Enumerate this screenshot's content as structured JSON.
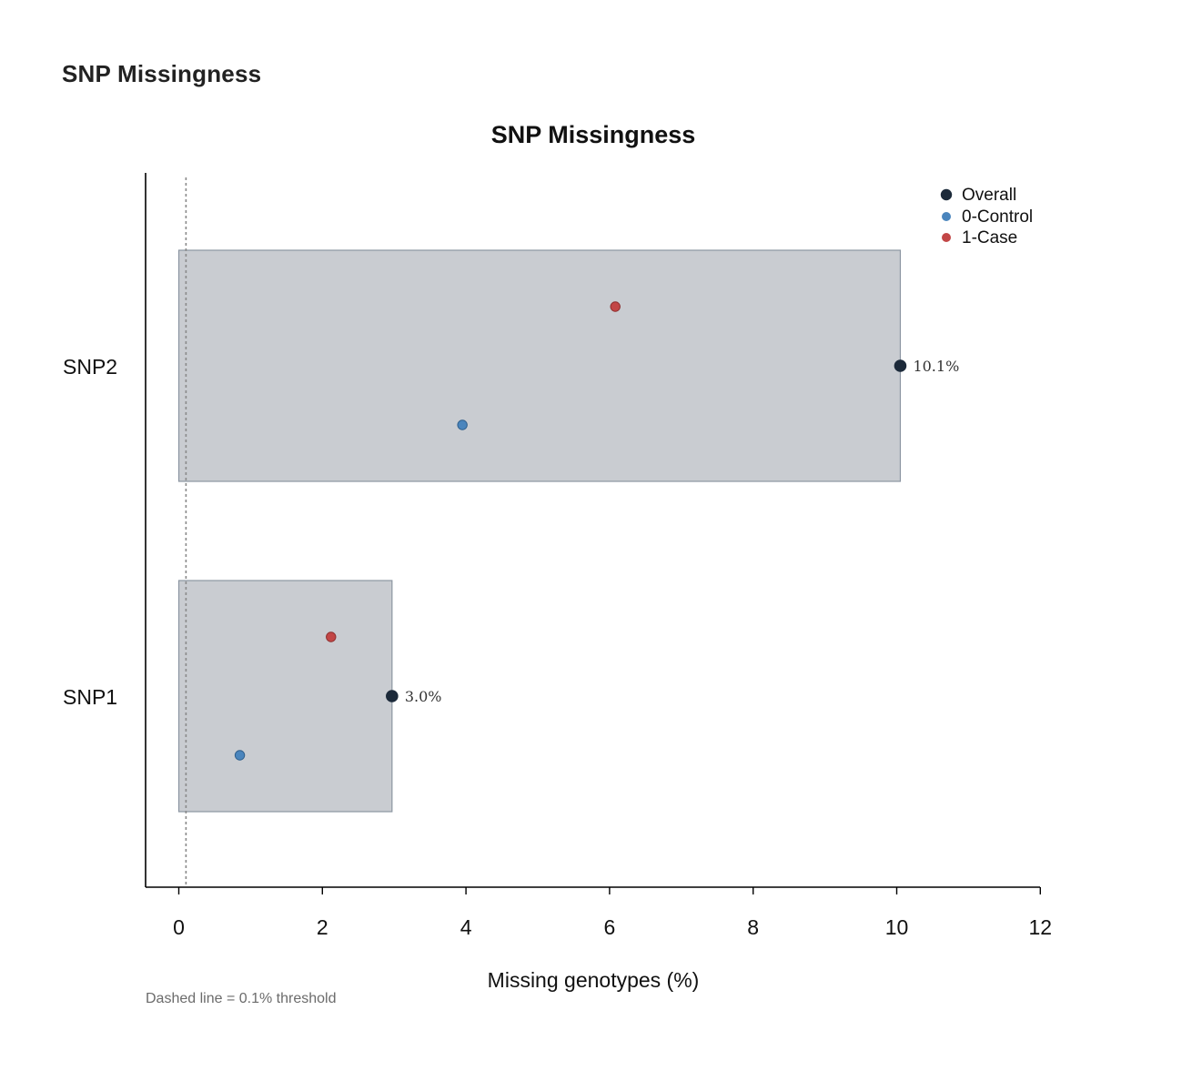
{
  "page": {
    "heading": "SNP Missingness"
  },
  "chart_data": {
    "type": "bar",
    "orientation": "horizontal",
    "title": "SNP Missingness",
    "xlabel": "Missing genotypes (%)",
    "ylabel": "",
    "xlim": [
      -0.5,
      12
    ],
    "x_ticks": [
      0,
      2,
      4,
      6,
      8,
      10,
      12
    ],
    "categories": [
      "SNP2",
      "SNP1"
    ],
    "series": [
      {
        "name": "Overall",
        "values": [
          10.05,
          2.97
        ],
        "value_labels": [
          "10.1%",
          "3.0%"
        ],
        "color": "#1c2a3a"
      },
      {
        "name": "0-Control",
        "values": [
          3.95,
          0.85
        ],
        "color": "#4a85bd"
      },
      {
        "name": "1-Case",
        "values": [
          6.08,
          2.12
        ],
        "color": "#c24646"
      }
    ],
    "bar_color": "#c9ccd1",
    "bar_edge_color": "#8c96a2",
    "threshold": {
      "value": 0.1
    },
    "legend": {
      "position": "top-right",
      "entries": [
        "Overall",
        "0-Control",
        "1-Case"
      ]
    },
    "grid": false,
    "footnote": "Dashed line = 0.1% threshold"
  }
}
